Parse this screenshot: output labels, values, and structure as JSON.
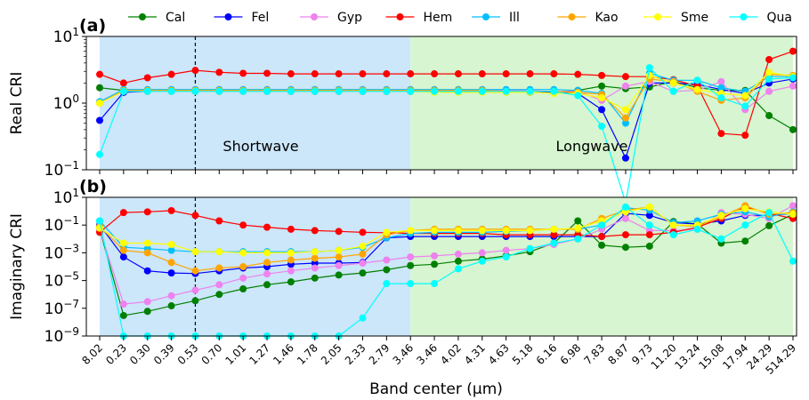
{
  "legend": {
    "entries": [
      {
        "name": "Cal",
        "color": "#008000"
      },
      {
        "name": "Fel",
        "color": "#0000ff"
      },
      {
        "name": "Gyp",
        "color": "#ee82ee"
      },
      {
        "name": "Hem",
        "color": "#ff0000"
      },
      {
        "name": "Ill",
        "color": "#00bfff"
      },
      {
        "name": "Kao",
        "color": "#ffa500"
      },
      {
        "name": "Sme",
        "color": "#ffff00"
      },
      {
        "name": "Qua",
        "color": "#00ffff"
      }
    ]
  },
  "region_colors": {
    "shortwave": "#cce6fa",
    "longwave": "#d6f5d0"
  },
  "chart_data": [
    {
      "type": "line",
      "panel_label": "(a)",
      "ylabel": "Real CRI",
      "yscale": "log",
      "ylim": [
        0.1,
        10
      ],
      "ytick_labels": [
        "10^-1",
        "10^0",
        "10^1"
      ],
      "regions": [
        "Shortwave",
        "Longwave"
      ],
      "categories": [
        "8.02",
        "0.23",
        "0.30",
        "0.39",
        "0.53",
        "0.70",
        "1.01",
        "1.27",
        "1.46",
        "1.78",
        "2.05",
        "2.33",
        "2.79",
        "3.46",
        "3.46",
        "4.02",
        "4.31",
        "4.63",
        "5.18",
        "6.16",
        "6.98",
        "7.83",
        "8.87",
        "9.73",
        "11.20",
        "13.24",
        "15.08",
        "17.94",
        "24.29",
        "514.29"
      ],
      "series": [
        {
          "name": "Cal",
          "values": [
            1.7,
            1.55,
            1.55,
            1.55,
            1.55,
            1.55,
            1.55,
            1.55,
            1.55,
            1.55,
            1.55,
            1.55,
            1.55,
            1.55,
            1.55,
            1.55,
            1.55,
            1.55,
            1.55,
            1.45,
            1.55,
            1.8,
            1.65,
            1.75,
            2.1,
            1.7,
            1.55,
            1.55,
            0.65,
            0.4
          ]
        },
        {
          "name": "Fel",
          "values": [
            0.55,
            1.45,
            1.5,
            1.5,
            1.5,
            1.5,
            1.5,
            1.5,
            1.5,
            1.5,
            1.5,
            1.5,
            1.5,
            1.5,
            1.5,
            1.5,
            1.5,
            1.5,
            1.45,
            1.45,
            1.4,
            0.8,
            0.15,
            2.0,
            2.0,
            1.9,
            1.6,
            1.4,
            2.0,
            2.3
          ]
        },
        {
          "name": "Gyp",
          "values": [
            1.05,
            1.5,
            1.55,
            1.55,
            1.55,
            1.55,
            1.55,
            1.55,
            1.55,
            1.55,
            1.55,
            1.55,
            1.55,
            1.55,
            1.55,
            1.55,
            1.55,
            1.55,
            1.55,
            1.5,
            1.5,
            1.1,
            1.8,
            2.1,
            1.5,
            1.55,
            2.1,
            0.8,
            1.5,
            1.8
          ]
        },
        {
          "name": "Hem",
          "values": [
            2.7,
            2.0,
            2.4,
            2.7,
            3.1,
            2.9,
            2.8,
            2.8,
            2.75,
            2.75,
            2.75,
            2.75,
            2.75,
            2.75,
            2.75,
            2.75,
            2.75,
            2.75,
            2.75,
            2.75,
            2.7,
            2.6,
            2.5,
            2.5,
            2.25,
            1.8,
            0.35,
            0.33,
            4.5,
            6.0
          ]
        },
        {
          "name": "Ill",
          "values": [
            1.05,
            1.6,
            1.6,
            1.6,
            1.6,
            1.6,
            1.6,
            1.6,
            1.6,
            1.6,
            1.6,
            1.6,
            1.6,
            1.6,
            1.6,
            1.6,
            1.6,
            1.6,
            1.6,
            1.6,
            1.55,
            1.4,
            0.5,
            2.8,
            2.2,
            2.2,
            1.7,
            1.5,
            2.5,
            2.5
          ]
        },
        {
          "name": "Kao",
          "values": [
            1.0,
            1.55,
            1.55,
            1.55,
            1.55,
            1.55,
            1.55,
            1.55,
            1.55,
            1.55,
            1.55,
            1.55,
            1.55,
            1.55,
            1.55,
            1.55,
            1.55,
            1.5,
            1.5,
            1.5,
            1.45,
            1.35,
            0.6,
            2.3,
            2.1,
            1.5,
            1.1,
            1.2,
            2.7,
            2.6
          ]
        },
        {
          "name": "Sme",
          "values": [
            1.0,
            1.5,
            1.5,
            1.5,
            1.5,
            1.5,
            1.5,
            1.5,
            1.5,
            1.5,
            1.5,
            1.5,
            1.5,
            1.5,
            1.45,
            1.45,
            1.45,
            1.45,
            1.45,
            1.4,
            1.4,
            1.2,
            0.8,
            2.6,
            2.0,
            1.6,
            1.4,
            1.3,
            2.9,
            2.5
          ]
        },
        {
          "name": "Qua",
          "values": [
            0.17,
            1.5,
            1.5,
            1.5,
            1.5,
            1.5,
            1.5,
            1.5,
            1.5,
            1.5,
            1.5,
            1.5,
            1.5,
            1.5,
            1.5,
            1.5,
            1.5,
            1.5,
            1.5,
            1.5,
            1.3,
            0.45,
            0.032,
            3.4,
            1.5,
            2.2,
            1.2,
            0.9,
            2.3,
            2.4
          ]
        }
      ]
    },
    {
      "type": "line",
      "panel_label": "(b)",
      "ylabel": "Imaginary CRI",
      "xlabel": "Band center (μm)",
      "yscale": "log",
      "ylim": [
        1e-09,
        10
      ],
      "ytick_labels": [
        "10^-9",
        "10^-7",
        "10^-5",
        "10^-3",
        "10^-1",
        "10^1"
      ],
      "categories": [
        "8.02",
        "0.23",
        "0.30",
        "0.39",
        "0.53",
        "0.70",
        "1.01",
        "1.27",
        "1.46",
        "1.78",
        "2.05",
        "2.33",
        "2.79",
        "3.46",
        "3.46",
        "4.02",
        "4.31",
        "4.63",
        "5.18",
        "6.16",
        "6.98",
        "7.83",
        "8.87",
        "9.73",
        "11.20",
        "13.24",
        "15.08",
        "17.94",
        "24.29",
        "514.29"
      ],
      "series": [
        {
          "name": "Cal",
          "values": [
            0.05,
            3e-08,
            6e-08,
            1.5e-07,
            3.5e-07,
            1e-06,
            2.5e-06,
            5e-06,
            8e-06,
            1.5e-05,
            2.5e-05,
            3.5e-05,
            6e-05,
            0.00012,
            0.00015,
            0.00025,
            0.00035,
            0.0006,
            0.0012,
            0.005,
            0.2,
            0.0035,
            0.0025,
            0.003,
            0.18,
            0.12,
            0.005,
            0.007,
            0.09,
            0.6
          ]
        },
        {
          "name": "Fel",
          "values": [
            0.1,
            0.0005,
            5e-05,
            3.5e-05,
            3.2e-05,
            5e-05,
            8e-05,
            0.0001,
            0.00015,
            0.00018,
            0.00018,
            0.0002,
            0.012,
            0.015,
            0.015,
            0.015,
            0.015,
            0.015,
            0.015,
            0.015,
            0.015,
            0.015,
            0.7,
            0.5,
            0.15,
            0.12,
            0.2,
            0.5,
            0.5,
            0.7
          ]
        },
        {
          "name": "Gyp",
          "values": [
            0.05,
            2e-07,
            3e-07,
            8e-07,
            2e-06,
            5e-06,
            1.5e-05,
            3e-05,
            5e-05,
            8e-05,
            0.00012,
            0.00018,
            0.0003,
            0.0005,
            0.0006,
            0.0008,
            0.001,
            0.0015,
            0.002,
            0.004,
            0.01,
            0.05,
            0.3,
            0.04,
            0.04,
            0.05,
            0.8,
            0.6,
            0.3,
            2.5
          ]
        },
        {
          "name": "Hem",
          "values": [
            0.03,
            0.8,
            0.9,
            1.1,
            0.5,
            0.2,
            0.1,
            0.07,
            0.05,
            0.04,
            0.035,
            0.03,
            0.028,
            0.025,
            0.025,
            0.025,
            0.025,
            0.02,
            0.02,
            0.02,
            0.02,
            0.015,
            0.02,
            0.02,
            0.03,
            0.07,
            0.3,
            2.0,
            0.7,
            0.3
          ]
        },
        {
          "name": "Ill",
          "values": [
            0.2,
            0.0025,
            0.002,
            0.0015,
            0.0012,
            0.0012,
            0.0012,
            0.0012,
            0.0012,
            0.0012,
            0.0015,
            0.0025,
            0.012,
            0.025,
            0.03,
            0.03,
            0.03,
            0.035,
            0.04,
            0.05,
            0.05,
            0.1,
            1.8,
            1.2,
            0.15,
            0.2,
            0.6,
            0.9,
            0.4,
            0.9
          ]
        },
        {
          "name": "Kao",
          "values": [
            0.08,
            0.0015,
            0.001,
            0.0002,
            5e-05,
            8e-05,
            0.0001,
            0.0002,
            0.0003,
            0.0004,
            0.0005,
            0.0008,
            0.02,
            0.04,
            0.05,
            0.05,
            0.05,
            0.05,
            0.05,
            0.05,
            0.05,
            0.3,
            1.2,
            2.0,
            0.1,
            0.08,
            0.4,
            2.5,
            0.6,
            0.8
          ]
        },
        {
          "name": "Sme",
          "values": [
            0.06,
            0.005,
            0.005,
            0.004,
            0.0012,
            0.0012,
            0.001,
            0.001,
            0.001,
            0.0012,
            0.0015,
            0.003,
            0.03,
            0.04,
            0.04,
            0.04,
            0.04,
            0.04,
            0.04,
            0.05,
            0.06,
            0.2,
            0.9,
            2.0,
            0.1,
            0.1,
            0.5,
            1.5,
            0.9,
            0.6
          ]
        },
        {
          "name": "Qua",
          "values": [
            0.2,
            1e-09,
            1e-09,
            1e-09,
            1e-09,
            1e-09,
            1e-09,
            1e-09,
            1e-09,
            1e-09,
            1e-09,
            2e-08,
            6e-06,
            6e-06,
            6e-06,
            7e-05,
            0.00025,
            0.0005,
            0.002,
            0.005,
            0.01,
            0.1,
            2.0,
            0.1,
            0.02,
            0.05,
            0.01,
            0.1,
            0.8,
            0.00025
          ]
        }
      ]
    }
  ]
}
